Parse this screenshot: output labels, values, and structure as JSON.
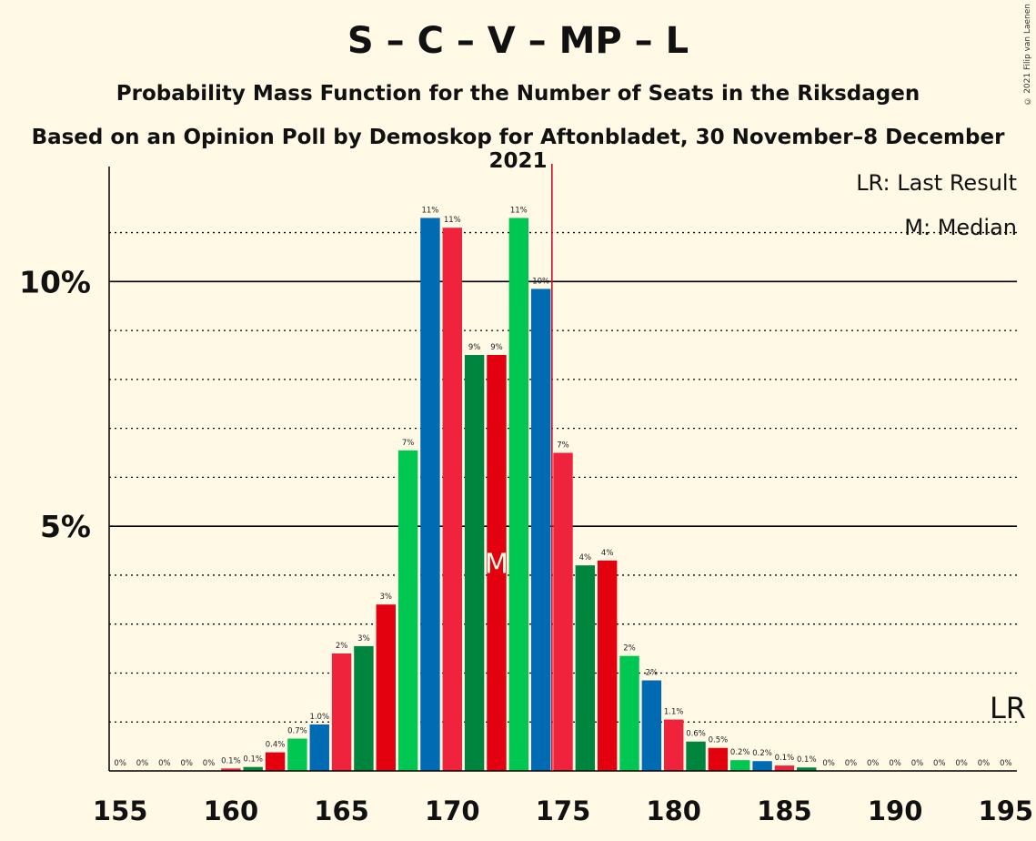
{
  "title": "S – C – V – MP – L",
  "subtitle": "Probability Mass Function for the Number of Seats in the Riksdagen",
  "subtitle2": "Based on an Opinion Poll by Demoskop for Aftonbladet, 30 November–8 December 2021",
  "copyright": "© 2021 Filip van Laenen",
  "legend": {
    "last_result": "LR: Last Result",
    "median": "M: Median"
  },
  "chart_data": {
    "type": "bar",
    "x": [
      155,
      156,
      157,
      158,
      159,
      160,
      161,
      162,
      163,
      164,
      165,
      166,
      167,
      168,
      169,
      170,
      171,
      172,
      173,
      174,
      175,
      176,
      177,
      178,
      179,
      180,
      181,
      182,
      183,
      184,
      185,
      186,
      187,
      188,
      189,
      190,
      191,
      192,
      193,
      194,
      195
    ],
    "values": [
      0,
      0,
      0,
      0,
      0,
      0.05,
      0.08,
      0.38,
      0.66,
      0.95,
      2.4,
      2.55,
      3.4,
      6.55,
      11.3,
      11.1,
      8.5,
      8.5,
      11.3,
      9.85,
      6.5,
      4.2,
      4.3,
      2.35,
      1.85,
      1.05,
      0.6,
      0.47,
      0.22,
      0.2,
      0.11,
      0.07,
      0,
      0,
      0,
      0,
      0,
      0,
      0,
      0,
      0
    ],
    "labels": [
      "0%",
      "0%",
      "0%",
      "0%",
      "0%",
      "0.1%",
      "0.1%",
      "0.4%",
      "0.7%",
      "1.0%",
      "2%",
      "3%",
      "3%",
      "7%",
      "11%",
      "11%",
      "9%",
      "9%",
      "11%",
      "10%",
      "7%",
      "4%",
      "4%",
      "2%",
      "2%",
      "1.1%",
      "0.6%",
      "0.5%",
      "0.2%",
      "0.2%",
      "0.1%",
      "0.1%",
      "0%",
      "0%",
      "0%",
      "0%",
      "0%",
      "0%",
      "0%",
      "0%",
      "0%"
    ],
    "colors": [
      "#F0233D",
      "#00853F",
      "#E3000F",
      "#00C752",
      "#006AB3"
    ],
    "xticks": [
      155,
      160,
      165,
      170,
      175,
      180,
      185,
      190,
      195
    ],
    "xtick_labels": [
      "155",
      "160",
      "165",
      "170",
      "175",
      "180",
      "185",
      "190",
      "195"
    ],
    "ytick_labels": {
      "5": "5%",
      "10": "10%"
    },
    "ylim": [
      0,
      12.35
    ],
    "xlim": [
      154.5,
      195.5
    ],
    "major_gridlines": [
      5,
      10
    ],
    "minor_gridlines": [
      1,
      2,
      3,
      4,
      6,
      7,
      8,
      9,
      11
    ],
    "median": 172,
    "median_label": "M",
    "last_result": 174.5,
    "last_result_line_color": "#C8102E",
    "last_result_axis_label": "LR"
  }
}
